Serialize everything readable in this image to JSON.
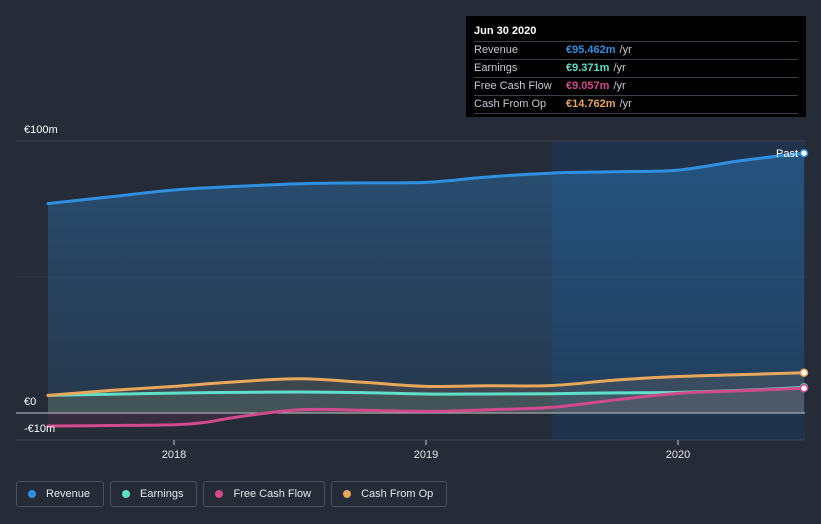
{
  "colors": {
    "background": "#252b37",
    "revenue": "#2f8fe0",
    "earnings": "#5fe0c8",
    "free_cash_flow": "#d14a8c",
    "cash_from_op": "#e8a75a",
    "past_shade": "#1e3a5c"
  },
  "tooltip": {
    "title": "Jun 30 2020",
    "rows": [
      {
        "name": "Revenue",
        "value": "€95.462m",
        "unit": "/yr",
        "color": "#2f8fe0"
      },
      {
        "name": "Earnings",
        "value": "€9.371m",
        "unit": "/yr",
        "color": "#5fe0c8"
      },
      {
        "name": "Free Cash Flow",
        "value": "€9.057m",
        "unit": "/yr",
        "color": "#d14a8c"
      },
      {
        "name": "Cash From Op",
        "value": "€14.762m",
        "unit": "/yr",
        "color": "#e8a75a"
      }
    ]
  },
  "legend": [
    {
      "label": "Revenue",
      "color": "#2f8fe0",
      "icon": "dot-icon"
    },
    {
      "label": "Earnings",
      "color": "#5fe0c8",
      "icon": "dot-icon"
    },
    {
      "label": "Free Cash Flow",
      "color": "#d14a8c",
      "icon": "dot-icon"
    },
    {
      "label": "Cash From Op",
      "color": "#e8a75a",
      "icon": "dot-icon"
    }
  ],
  "chart_data": {
    "type": "area",
    "title": "",
    "xlabel": "",
    "ylabel": "",
    "x_range": [
      2017.5,
      2020.5
    ],
    "ylim": [
      -10,
      100
    ],
    "y_tick_labels": [
      {
        "value": 100,
        "label": "€100m"
      },
      {
        "value": 0,
        "label": "€0"
      },
      {
        "value": -10,
        "label": "-€10m"
      }
    ],
    "x_ticks": [
      {
        "value": 2018,
        "label": "2018"
      },
      {
        "value": 2019,
        "label": "2019"
      },
      {
        "value": 2020,
        "label": "2020"
      }
    ],
    "past_region_start": 2019.5,
    "past_label": "Past",
    "series": [
      {
        "name": "Revenue",
        "key": "revenue",
        "x": [
          2017.5,
          2017.75,
          2018.0,
          2018.25,
          2018.5,
          2018.75,
          2019.0,
          2019.25,
          2019.5,
          2019.75,
          2020.0,
          2020.25,
          2020.5
        ],
        "values": [
          77,
          79.5,
          82,
          83.3,
          84.3,
          84.6,
          84.8,
          86.8,
          88.2,
          88.7,
          89.3,
          92.8,
          95.5
        ]
      },
      {
        "name": "Earnings",
        "key": "earnings",
        "x": [
          2017.5,
          2017.75,
          2018.0,
          2018.25,
          2018.5,
          2018.75,
          2019.0,
          2019.25,
          2019.5,
          2019.75,
          2020.0,
          2020.25,
          2020.5
        ],
        "values": [
          6.5,
          6.9,
          7.3,
          7.6,
          7.7,
          7.5,
          7.0,
          7.0,
          7.1,
          7.4,
          7.6,
          8.3,
          9.4
        ]
      },
      {
        "name": "Free Cash Flow",
        "key": "free_cash_flow",
        "x": [
          2017.5,
          2017.75,
          2018.0,
          2018.12,
          2018.25,
          2018.5,
          2018.75,
          2019.0,
          2019.25,
          2019.5,
          2019.75,
          2020.0,
          2020.25,
          2020.5
        ],
        "values": [
          -4.8,
          -4.6,
          -4.3,
          -3.5,
          -1.5,
          1.2,
          1.0,
          0.6,
          1.2,
          2.1,
          4.8,
          7.2,
          8.2,
          9.1
        ]
      },
      {
        "name": "Cash From Op",
        "key": "cash_from_op",
        "x": [
          2017.5,
          2017.75,
          2018.0,
          2018.25,
          2018.5,
          2018.75,
          2019.0,
          2019.25,
          2019.5,
          2019.75,
          2020.0,
          2020.25,
          2020.5
        ],
        "values": [
          6.5,
          8.3,
          9.8,
          11.5,
          12.6,
          11.3,
          9.8,
          10.0,
          10.1,
          12.1,
          13.4,
          14.1,
          14.8
        ]
      }
    ]
  }
}
